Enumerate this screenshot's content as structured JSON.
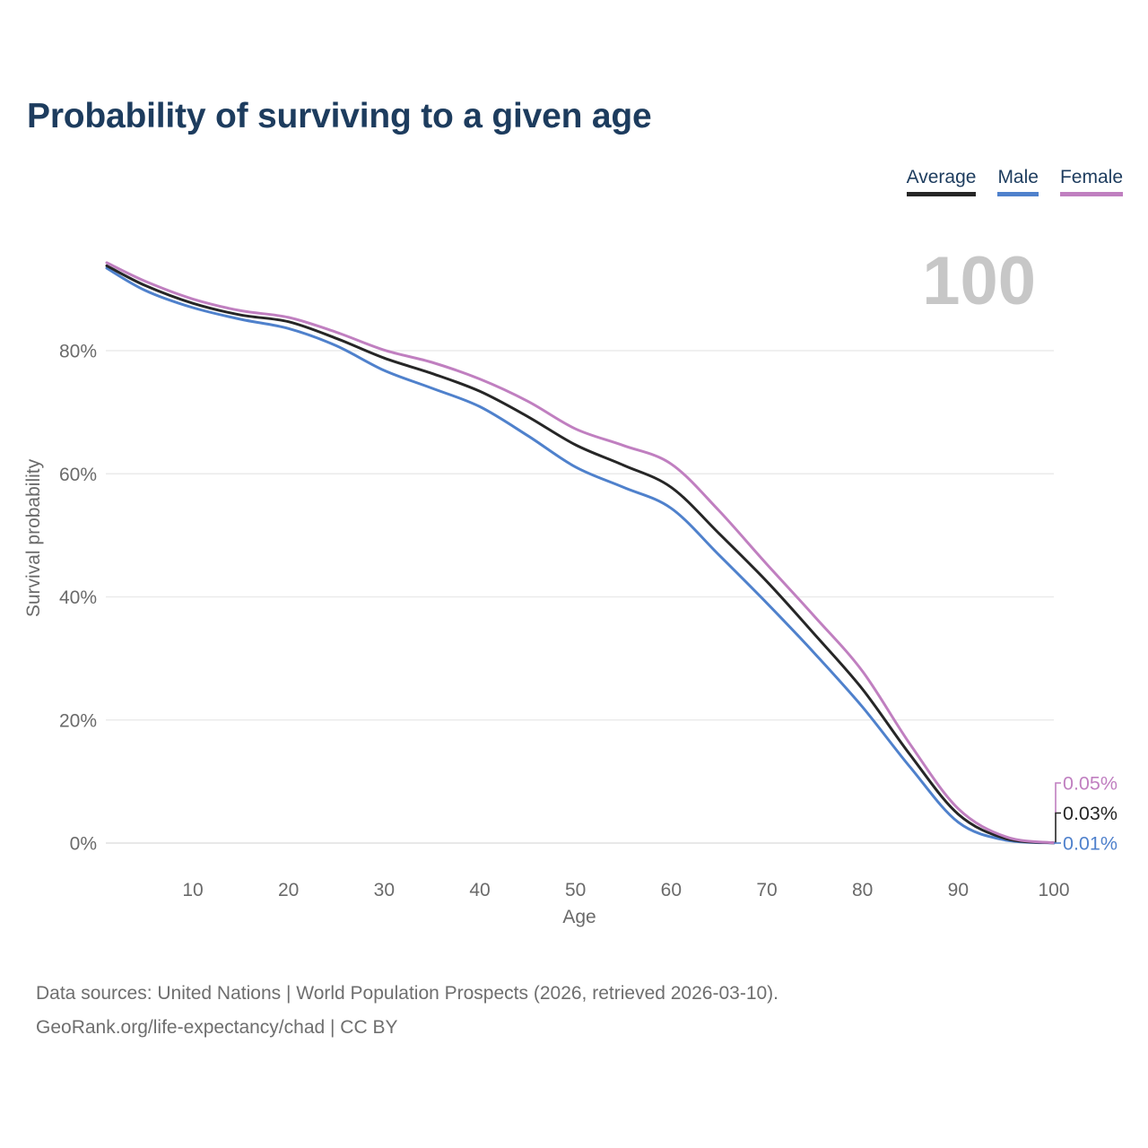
{
  "title": "Probability of surviving to a given age",
  "watermark": "100",
  "legend": {
    "items": [
      {
        "label": "Average",
        "color": "#262626"
      },
      {
        "label": "Male",
        "color": "#4f81cc"
      },
      {
        "label": "Female",
        "color": "#c07fc0"
      }
    ]
  },
  "axes": {
    "y_label": "Survival probability",
    "x_label": "Age",
    "y_ticks": [
      {
        "value": 0,
        "label": "0%"
      },
      {
        "value": 20,
        "label": "20%"
      },
      {
        "value": 40,
        "label": "40%"
      },
      {
        "value": 60,
        "label": "60%"
      },
      {
        "value": 80,
        "label": "80%"
      }
    ],
    "x_ticks": [
      {
        "value": 10,
        "label": "10"
      },
      {
        "value": 20,
        "label": "20"
      },
      {
        "value": 30,
        "label": "30"
      },
      {
        "value": 40,
        "label": "40"
      },
      {
        "value": 50,
        "label": "50"
      },
      {
        "value": 60,
        "label": "60"
      },
      {
        "value": 70,
        "label": "70"
      },
      {
        "value": 80,
        "label": "80"
      },
      {
        "value": 90,
        "label": "90"
      },
      {
        "value": 100,
        "label": "100"
      }
    ]
  },
  "chart_data": {
    "type": "line",
    "title": "Probability of surviving to a given age",
    "xlabel": "Age",
    "ylabel": "Survival probability",
    "xlim": [
      1,
      100
    ],
    "ylim": [
      0,
      100
    ],
    "grid": "horizontal",
    "legend_position": "top-right",
    "x": [
      1,
      5,
      10,
      15,
      20,
      25,
      30,
      35,
      40,
      45,
      50,
      55,
      60,
      65,
      70,
      75,
      80,
      85,
      90,
      95,
      100
    ],
    "series": [
      {
        "name": "Average",
        "color": "#262626",
        "end_label": "0.03%",
        "values": [
          93.8,
          90.6,
          87.7,
          85.8,
          84.7,
          82.0,
          78.8,
          76.3,
          73.4,
          69.3,
          64.7,
          61.4,
          57.8,
          50.3,
          42.5,
          33.9,
          25.0,
          14.3,
          4.7,
          0.7,
          0.03
        ]
      },
      {
        "name": "Male",
        "color": "#4f81cc",
        "end_label": "0.01%",
        "values": [
          93.4,
          89.8,
          87.0,
          85.1,
          83.6,
          80.8,
          76.8,
          73.9,
          70.9,
          66.2,
          61.1,
          57.8,
          54.4,
          46.8,
          39.0,
          30.8,
          22.1,
          12.3,
          3.4,
          0.45,
          0.01
        ]
      },
      {
        "name": "Female",
        "color": "#c07fc0",
        "end_label": "0.05%",
        "values": [
          94.3,
          91.3,
          88.4,
          86.5,
          85.4,
          83.0,
          80.1,
          78.1,
          75.4,
          71.8,
          67.3,
          64.6,
          61.6,
          54.0,
          45.3,
          36.8,
          27.9,
          16.0,
          5.6,
          1.0,
          0.05
        ]
      }
    ]
  },
  "footer": {
    "line1": "Data sources: United Nations | World Population Prospects (2026, retrieved 2026-03-10).",
    "line2": "GeoRank.org/life-expectancy/chad | CC BY"
  },
  "colors": {
    "title_text": "#1d3c5e",
    "axis_text": "#6a6a6a",
    "gridline": "#ebebeb",
    "zero_gridline": "#e0e0e0",
    "watermark": "#c7c7c7",
    "footer_text": "#6e6e6e"
  }
}
